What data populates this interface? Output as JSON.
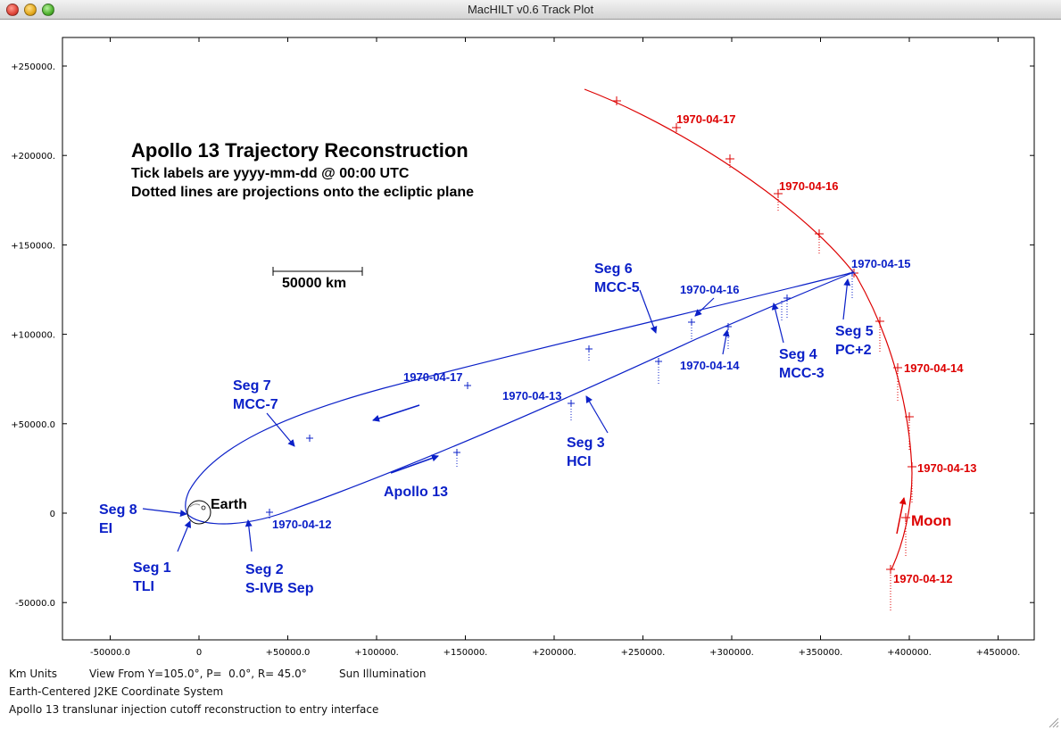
{
  "window": {
    "title": "MacHILT v0.6 Track Plot"
  },
  "plot": {
    "heading": "Apollo 13 Trajectory Reconstruction",
    "subheading1": "Tick labels are yyyy-mm-dd @ 00:00 UTC",
    "subheading2": "Dotted lines are projections onto the ecliptic plane",
    "scale_label": "50000 km",
    "earth_label": "Earth",
    "moon_label": "Moon",
    "apollo_label": "Apollo 13",
    "x_ticks": [
      "-50000.0",
      "0",
      "+50000.0",
      "+100000.",
      "+150000.",
      "+200000.",
      "+250000.",
      "+300000.",
      "+350000.",
      "+400000.",
      "+450000."
    ],
    "y_ticks": [
      "+250000.",
      "+200000.",
      "+150000.",
      "+100000.",
      "+50000.0",
      "0",
      "-50000.0"
    ],
    "segments": [
      {
        "line1": "Seg 1",
        "line2": "TLI"
      },
      {
        "line1": "Seg 2",
        "line2": "S-IVB Sep"
      },
      {
        "line1": "Seg 3",
        "line2": "HCI"
      },
      {
        "line1": "Seg 4",
        "line2": "MCC-3"
      },
      {
        "line1": "Seg 5",
        "line2": "PC+2"
      },
      {
        "line1": "Seg 6",
        "line2": "MCC-5"
      },
      {
        "line1": "Seg 7",
        "line2": "MCC-7"
      },
      {
        "line1": "Seg 8",
        "line2": "EI"
      }
    ],
    "apollo_dates": [
      "1970-04-12",
      "1970-04-13",
      "1970-04-14",
      "1970-04-15",
      "1970-04-16",
      "1970-04-17"
    ],
    "moon_dates": [
      "1970-04-12",
      "1970-04-13",
      "1970-04-14",
      "1970-04-16",
      "1970-04-17"
    ],
    "colors": {
      "apollo": "#0b20c8",
      "moon": "#dd0000",
      "text": "#000000"
    }
  },
  "status": {
    "units": "Km Units",
    "view": "View From Y=105.0°, P=  0.0°, R= 45.0°",
    "illumination": "Sun Illumination",
    "coord_system": "Earth-Centered J2KE Coordinate System",
    "description": "Apollo 13 translunar injection cutoff reconstruction to entry interface"
  }
}
